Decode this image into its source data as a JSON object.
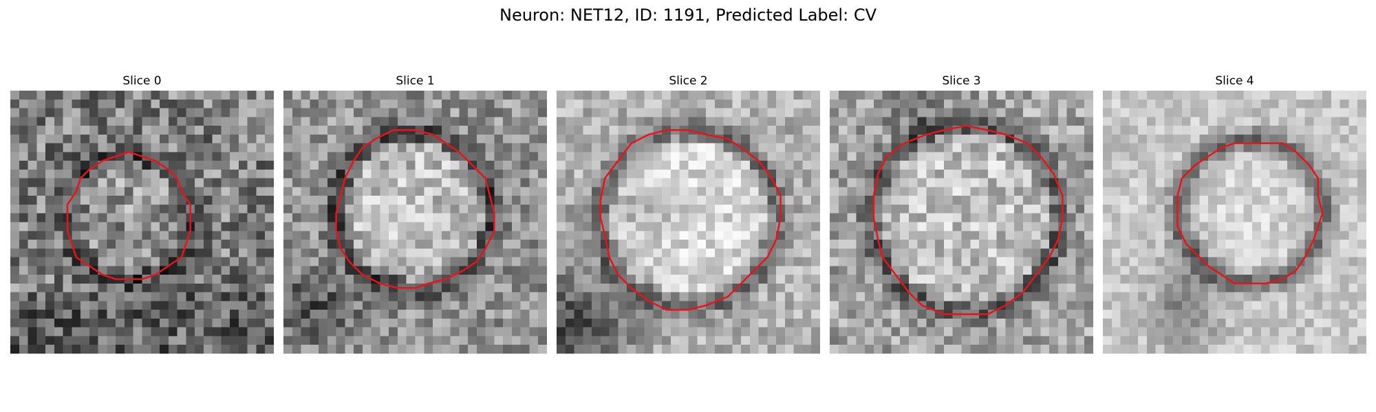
{
  "figure": {
    "title": "Neuron: NET12, ID: 1191, Predicted Label: CV"
  },
  "panels": [
    {
      "title": "Slice 0"
    },
    {
      "title": "Slice 1"
    },
    {
      "title": "Slice 2"
    },
    {
      "title": "Slice 3"
    },
    {
      "title": "Slice 4"
    }
  ],
  "colors": {
    "outline": "#e8141b",
    "background": "#ffffff"
  }
}
